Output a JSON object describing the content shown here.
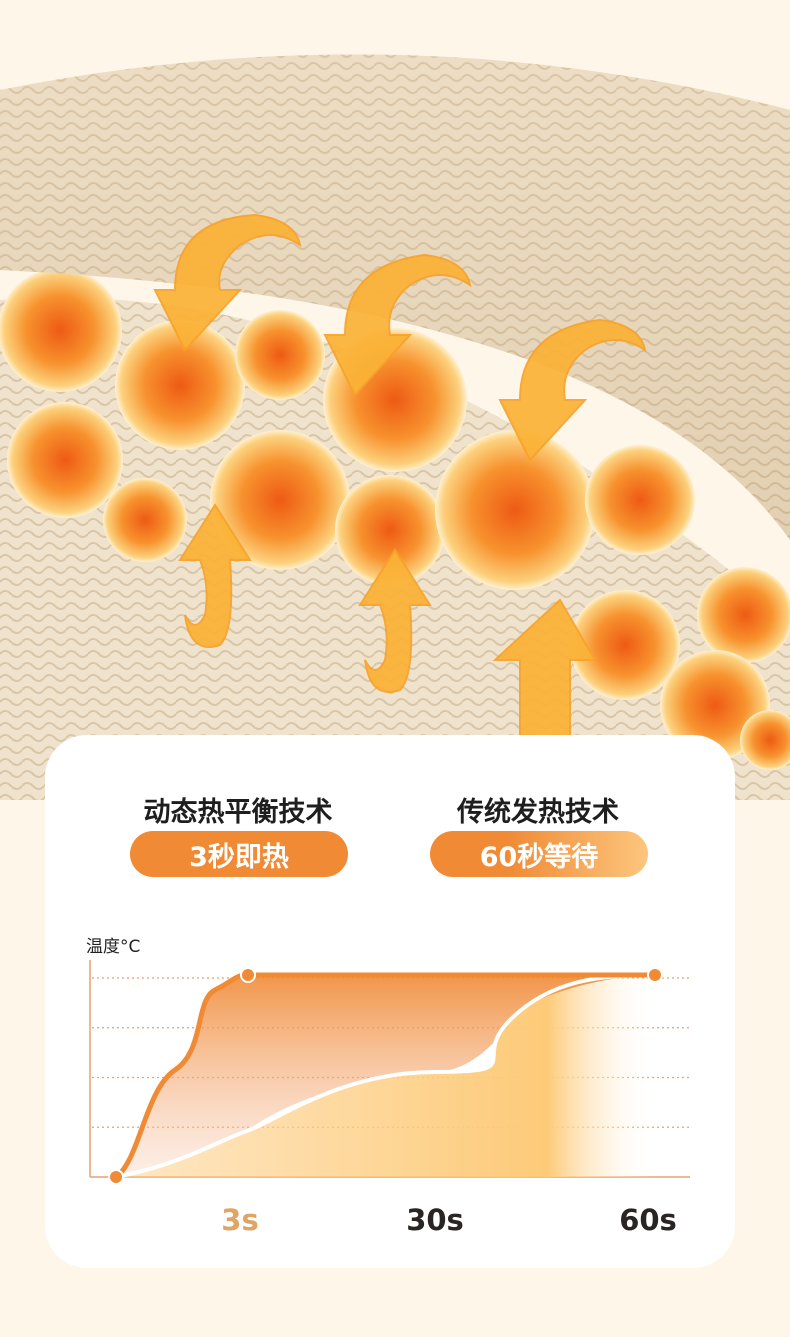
{
  "left": {
    "title": "动态热平衡技术",
    "badge": "3秒即热"
  },
  "right": {
    "title": "传统发热技术",
    "badge": "60秒等待"
  },
  "colors": {
    "accent": "#f08a35",
    "light": "#fcc67d",
    "background": "#fdf6e9"
  },
  "chart_data": {
    "type": "area",
    "ylabel": "温度°C",
    "xlabel": "",
    "x": [
      "0",
      "3s",
      "30s",
      "60s"
    ],
    "x_tick_labels": [
      "3s",
      "30s",
      "60s"
    ],
    "grid": true,
    "series": [
      {
        "values": [
          0,
          1,
          1,
          1
        ],
        "color": "#f08a35"
      },
      {
        "values": [
          0,
          0.23,
          0.52,
          1
        ],
        "color": "#ffffff"
      }
    ],
    "ylim": [
      0,
      1
    ]
  }
}
